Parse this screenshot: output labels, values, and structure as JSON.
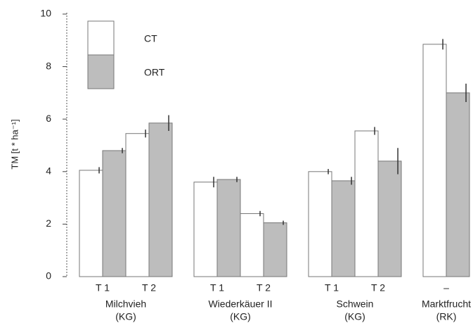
{
  "chart_data": {
    "type": "bar",
    "ylabel": "TM [t * ha⁻¹]",
    "ylim": [
      0,
      10
    ],
    "yticks": [
      0,
      2,
      4,
      6,
      8,
      10
    ],
    "legend": "upper left",
    "groups": [
      {
        "name": "Milchvieh",
        "note": "(KG)",
        "categories": [
          "T 1",
          "T 2"
        ]
      },
      {
        "name": "Wiederkäuer II",
        "note": "(KG)",
        "categories": [
          "T 1",
          "T 2"
        ]
      },
      {
        "name": "Schwein",
        "note": "(KG)",
        "categories": [
          "T 1",
          "T 2"
        ]
      },
      {
        "name": "Marktfrucht",
        "note": "(RK)",
        "categories": [
          "–"
        ]
      }
    ],
    "series": [
      {
        "name": "CT",
        "color": "#ffffff",
        "values": [
          4.05,
          5.45,
          3.6,
          2.4,
          4.0,
          5.55,
          8.85
        ],
        "errors": [
          0.12,
          0.15,
          0.2,
          0.1,
          0.1,
          0.15,
          0.2
        ]
      },
      {
        "name": "ORT",
        "color": "#bdbdbd",
        "values": [
          4.8,
          5.85,
          3.7,
          2.05,
          3.65,
          4.4,
          7.0
        ],
        "errors": [
          0.1,
          0.3,
          0.1,
          0.08,
          0.15,
          0.5,
          0.35
        ]
      }
    ]
  }
}
